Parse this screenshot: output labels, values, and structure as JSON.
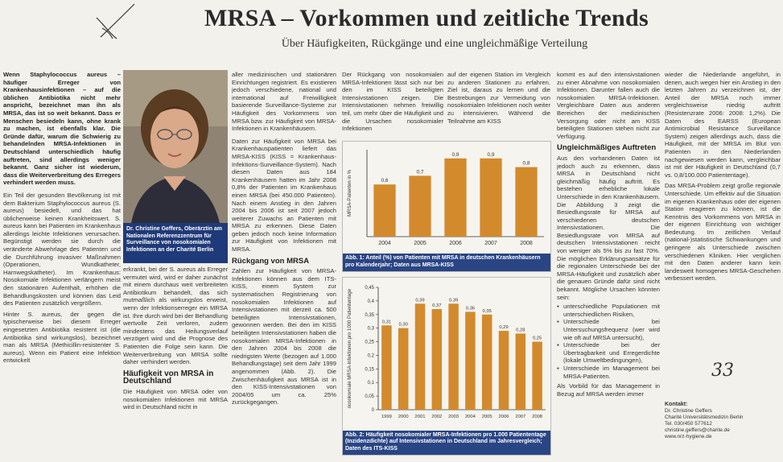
{
  "header": {
    "title": "MRSA – Vorkommen und zeitliche Trends",
    "subtitle": "Über Häufigkeiten, Rückgänge und eine ungleichmäßige Verteilung"
  },
  "col1": {
    "lead": "Wenn Staphylococcus aureus – häufiger Erreger von Krankenhausinfektionen – auf die üblichen Antibiotika nicht mehr anspricht, bezeichnet man ihn als MRSA, das ist so weit bekannt. Dass er Menschen besiedeln kann, ohne krank zu machen, ist ebenfalls klar. Die Gründe dafür, warum die Schwierig zu behandelnden MRSA-Infektionen in Deutschland unterschiedlich häufig auftreten, sind allerdings weniger bekannt. Ganz sicher ist wiederum, dass die Weiterverbreitung des Erregers verhindert werden muss.",
    "body": "Ein Teil der gesunden Bevölkerung ist mit dem Bakterium Staphylococcus aureus (S. aureus) besiedelt, und das hat üblicherweise keinen Krankheitswert. S. aureus kann bei Patienten im Krankenhaus allerdings leichte Infektionen verursachen. Begünstigt werden sie durch die veränderte Abwehrlage des Patienten und die Durchführung invasiver Maßnahmen (Operationen, Wundkatheter, Harnwegskatheter). Im Krankenhaus: Nosokomiale Infektionen verlängern meist den stationären Aufenthalt, erhöhen die Behandlungskosten und können das Leid des Patienten zusätzlich vergrößern.",
    "body2": "Hinter S. aureus, der gegen die typischerweise bei diesem Erreger eingesetzten Antibiotika resistent ist (die Antibiotika sind wirkungslos), bezeichnet man als MRSA (Methicillin-resistenter S. aureus). Wenn ein Patient eine Infektion entwickelt"
  },
  "photo": {
    "caption": "Dr. Christine Geffers, Oberärztin am Nationalen Referenzzentrum für Surveillance von nosokomialen Infektionen an der Charité Berlin"
  },
  "col2": {
    "top": "aller medizinischen und stationären Einrichtungen registriert. Es existieren jedoch verschiedene, national und international auf Freiwilligkeit basierende Surveillance-Systeme zur Häufigkeit des Vorkommens von MRSA bzw. zur Häufigkeit von MRSA-Infektionen in Krankenhäusern.",
    "p1": "Daten zur Häufigkeit von MRSA bei Krankenhauspatienten liefert das MRSA-KISS (KISS = Krankenhaus-Infektions-Surveillance-System). Nach diesen Daten aus 184 Krankenhäusern hatten im Jahr 2008 0,8% der Patienten im Krankenhaus einen MRSA (bei 450.000 Patienten). Nach einem Anstieg in den Jahren 2004 bis 2006 ist seit 2007 jedoch weiterer Zuwachs an Patienten mit MRSA zu erkennen. Diese Daten geben jedoch noch keine Information zur Häufigkeit von Infektionen mit MRSA.",
    "h_rueck": "Rückgang von MRSA",
    "p2": "Zahlen zur Häufigkeit von MRSA-Infektionen können aus dem ITS-KISS, einem System zur systematischen Registrierung von nosokomialen Infektionen auf Intensivstationen mit derzeit ca. 500 beteiligten Intensivstationen, gewonnen werden. Bei den im KISS beteiligten Intensivstationen haben die nosokomialen MRSA-Infektionen in den Jahren 2004 bis 2008 die niedrigsten Werte (bezogen auf 1.000 Behandlungstage) seit dem Jahr 1999 angenommen (Abb. 2). Die Zwischenhäufigkeit aus MRSA ist in den KISS-Intensivstationen von 2004/05 um ca. 25% zurückgegangen."
  },
  "col3": {
    "p1": "erkrankt, bei der S. aureus als Erreger vermutet wird, wird er daher zunächst mit einem durchaus weit verbreiteten Antibiotikum behandelt, das sich mutmaßlich als wirkungslos erweist, wenn der Infektionserreger ein MRSA ist. Ihre durch wird bei der Behandlung wertvolle Zeit verloren, zudem mindestens das Heilungsverlauf verzögert wird und die Prognose des Patienten die Folge sein kann. Die Weiterverbreitung von MRSA sollte daher verhindert werden.",
    "h_freq": "Häufigkeit von MRSA in Deutschland",
    "p2": "Die Häufigkeit von MRSA oder von nosokomialen Infektionen mit MRSA wird in Deutschland nicht in"
  },
  "col4": {
    "p1": "Der Rückgang von nosokomialen MRSA-Infektionen lässt sich nur bei den im KISS beteiligten Intensivstationen zeigen. Die Intensivstationen nehmen freiwillig teil, um mehr über die Häufigkeit und die Ursachen nosokomialer Infektionen"
  },
  "col5": {
    "p1": "auf der eigenen Station im Vergleich zu anderen Stationen zu erfahren. Ziel ist, daraus zu lernen und die Bestrebungen zur Vermeidung von nosokomialen Infektionen noch weiter zu intensivieren. Während die Teilnahme am KISS"
  },
  "col6": {
    "p1": "kommt es auf den intensivstationen zu einer Abnahme von nosokomialen Infektionen. Darunter fallen auch die nosokomialen MRSA-Infektionen. Vergleichbare Daten aus anderen Bereichen der medizinischen Versorgung oder nicht am KISS beteiligten Stationen stehen nicht zur Verfügung.",
    "h_ungl": "Ungleichmäßiges Auftreten",
    "p2": "Aus den vorhandenen Daten ist jedoch auch zu erkennen, dass MRSA in Deutschland nicht gleichmäßig häufig auftritt. Es bestehen erhebliche lokale Unterschiede in den Krankenhäusern. Die Abbildung 3 zeigt die Besiedlungsrate für MRSA auf verschiedenen deutschen Intensivstationen. Die Besiedlungsrate von MRSA auf deutschen Intensivstationen reicht von weniger als 5% bis zu fast 70%. Die möglichen Erklärungsansätze für die regionalen Unterschiede bei der MRSA-Häufigkeit und zusätzlich aber die genauen Gründe dafür sind nicht bekannt. Mögliche Ursachen könnten sein:",
    "bullets": [
      "unterschiedliche Populationen mit unterschiedlichen Risiken,",
      "Unterschiede bei Untersuchungsfrequenz (wer wird wie oft auf MRSA untersucht),",
      "Unterschiede bei der Übertragbarkeit und Erregerdichte (lokale Umweltbedingungen),",
      "Unterschiede im Management bei MRSA-Patienten."
    ],
    "p3": "Als Vorbild für das Management in Bezug auf MRSA werden immer"
  },
  "col7": {
    "p1": "wieder die Niederlande angeführt, in denen, auch wegen hier ein Anstieg in den letzten Jahren zu verzeichnen ist, der Anteil der MRSA noch immer vergleichsweise niedrig auftritt (Resistenzrate 2006: 2008: 1,2%). Die Daten des EARSS (European Antimicrobial Resistance Surveillance System) zeigen allerdings auch, dass die Häufigkeit, mit der MRSA im Blut von Patienten in den Niederlanden nachgewiesen werden kann, vergleichbar ist mit der Häufigkeit in Deutschland (0,7 vs. 0,8/100.000 Patiententage).",
    "p2": "Das MRSA-Problem zeigt große regionale Unterschiede. Um effektiv auf die Situation im eigenen Krankenhaus oder der eigenen Station reagieren zu können, ist die Kenntnis des Vorkommens von MRSA in der eigenen Einrichtung von wichtiger Bedeutung. Im zeitlichen Verlauf (national-)statistische Schwankungen und geringere als Unterschiede zwischen verschiedenen Kliniken. Hier verglichen mit den Daten anderer kann kein landesweit homogenes MRSA-Geschehen verbessert werden."
  },
  "handwritten_number": "33",
  "contact": {
    "label": "Kontakt:",
    "name": "Dr. Christine Geffers",
    "org": "Charité Universitätsmedizin Berlin",
    "tel": "Tel. 030/450 577612",
    "email": "christine.geffers@charite.de",
    "web": "www.nrz-hygiene.de"
  },
  "chart_data": [
    {
      "type": "bar",
      "ylabel": "MRSA-Patienten in %",
      "categories": [
        "2004",
        "2005",
        "2006",
        "2007",
        "2008"
      ],
      "values": [
        0.6,
        0.7,
        0.9,
        0.9,
        0.8
      ],
      "data_labels": [
        "0,6",
        "0,7",
        "0,9",
        "0,9",
        "0,8"
      ],
      "ylim": [
        0,
        1
      ],
      "caption": "Abb. 1: Anteil (%) von Patienten mit MRSA in deutschen Krankenhäusern pro Kalenderjahr; Daten aus MRSA-KISS",
      "bar_color": "#d28a2c"
    },
    {
      "type": "bar",
      "ylabel": "nosokomiale MRSA-Infektionen pro 1000 Patiententage",
      "categories": [
        "1999",
        "2000",
        "2001",
        "2002",
        "2003",
        "2004",
        "2005",
        "2006",
        "2007",
        "2008"
      ],
      "values": [
        0.31,
        0.3,
        0.39,
        0.37,
        0.39,
        0.36,
        0.35,
        0.29,
        0.28,
        0.25
      ],
      "data_labels": [
        "0,31",
        "0,30",
        "0,39",
        "0,37",
        "0,39",
        "0,36",
        "0,35",
        "0,29",
        "0,28",
        "0,25"
      ],
      "yticks": [
        "0",
        "0,05",
        "0,1",
        "0,15",
        "0,2",
        "0,25",
        "0,3",
        "0,35",
        "0,4",
        "0,45"
      ],
      "ylim": [
        0,
        0.45
      ],
      "caption": "Abb. 2: Häufigkeit nosokomialer MRSA-Infektionen pro 1.000 Patiententage (Inzidenzdichte) auf Intensivstationen in Deutschland im Jahresvergleich; Daten des ITS-KISS",
      "bar_color": "#d28a2c"
    }
  ]
}
